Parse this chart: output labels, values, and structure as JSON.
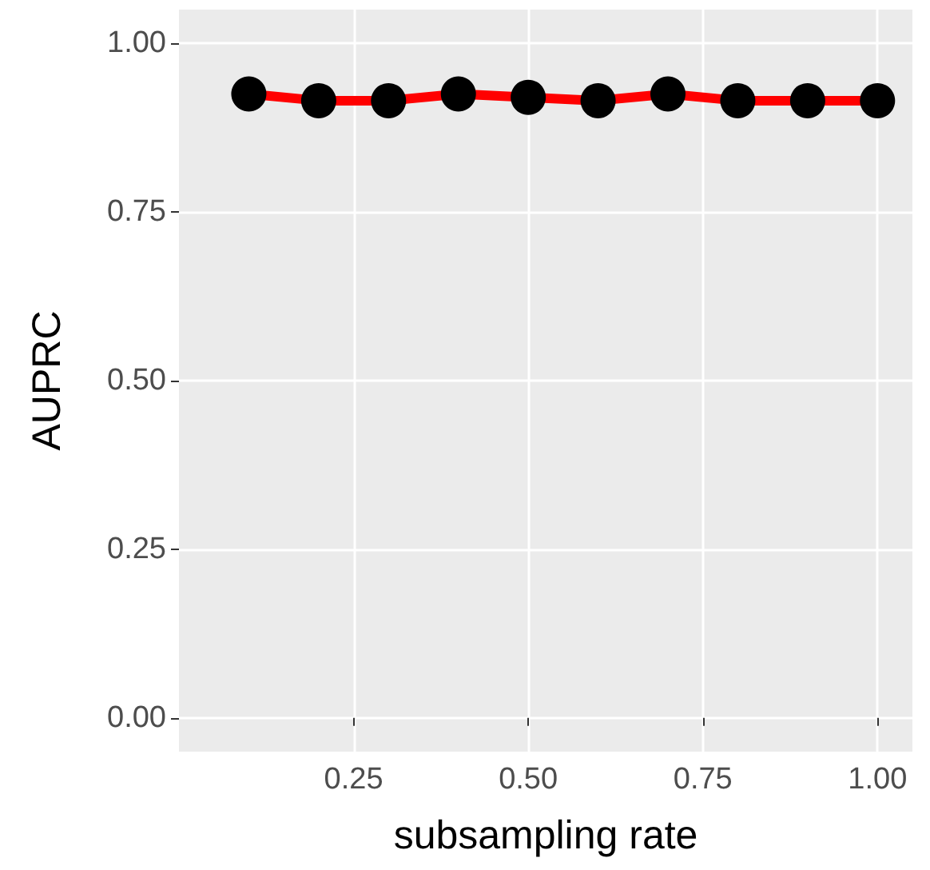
{
  "chart_data": {
    "type": "line",
    "xlabel": "subsampling rate",
    "ylabel": "AUPRC",
    "x": [
      0.1,
      0.2,
      0.3,
      0.4,
      0.5,
      0.6,
      0.7,
      0.8,
      0.9,
      1.0
    ],
    "series": [
      {
        "color": "#ff0000",
        "values": [
          0.925,
          0.915,
          0.915,
          0.925,
          0.92,
          0.915,
          0.925,
          0.915,
          0.915,
          0.915
        ]
      }
    ],
    "xlim": [
      0.0,
      1.05
    ],
    "xticks": [
      {
        "value": 0.25,
        "label": "0.25"
      },
      {
        "value": 0.5,
        "label": "0.50"
      },
      {
        "value": 0.75,
        "label": "0.75"
      },
      {
        "value": 1.0,
        "label": "1.00"
      }
    ],
    "ylim": [
      -0.05,
      1.05
    ],
    "yticks": [
      {
        "value": 0,
        "label": "0.00"
      },
      {
        "value": 0.25,
        "label": "0.25"
      },
      {
        "value": 0.5,
        "label": "0.50"
      },
      {
        "value": 0.75,
        "label": "0.75"
      },
      {
        "value": 1.0,
        "label": "1.00"
      }
    ],
    "grid": true,
    "marker": "circle",
    "line_style": "solid"
  }
}
